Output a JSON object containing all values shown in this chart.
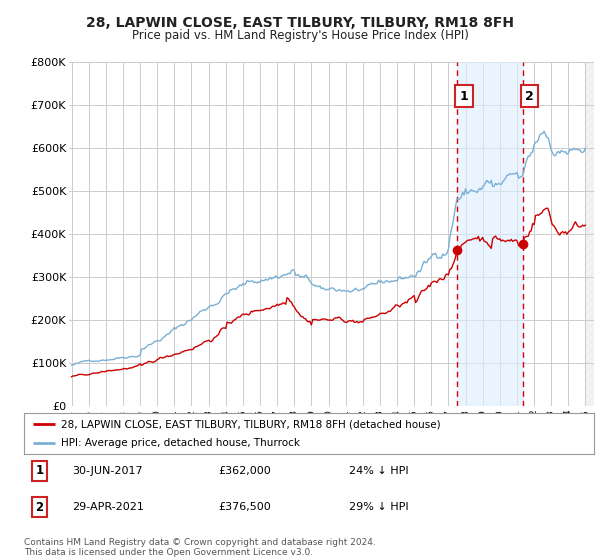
{
  "title": "28, LAPWIN CLOSE, EAST TILBURY, TILBURY, RM18 8FH",
  "subtitle": "Price paid vs. HM Land Registry's House Price Index (HPI)",
  "legend_label_red": "28, LAPWIN CLOSE, EAST TILBURY, TILBURY, RM18 8FH (detached house)",
  "legend_label_blue": "HPI: Average price, detached house, Thurrock",
  "footnote": "Contains HM Land Registry data © Crown copyright and database right 2024.\nThis data is licensed under the Open Government Licence v3.0.",
  "annotation1_label": "1",
  "annotation1_date": "30-JUN-2017",
  "annotation1_price": "£362,000",
  "annotation1_hpi": "24% ↓ HPI",
  "annotation2_label": "2",
  "annotation2_date": "29-APR-2021",
  "annotation2_price": "£376,500",
  "annotation2_hpi": "29% ↓ HPI",
  "point1_x": 2017.5,
  "point1_y": 362000,
  "point2_x": 2021.33,
  "point2_y": 376500,
  "red_color": "#cc0000",
  "blue_color": "#7ab0d4",
  "shade_color": "#ddeeff",
  "dashed_color": "#dd0000",
  "ylim": [
    0,
    800000
  ],
  "xlim_left": 1994.85,
  "xlim_right": 2025.5,
  "background_color": "#ffffff",
  "grid_color": "#cccccc"
}
